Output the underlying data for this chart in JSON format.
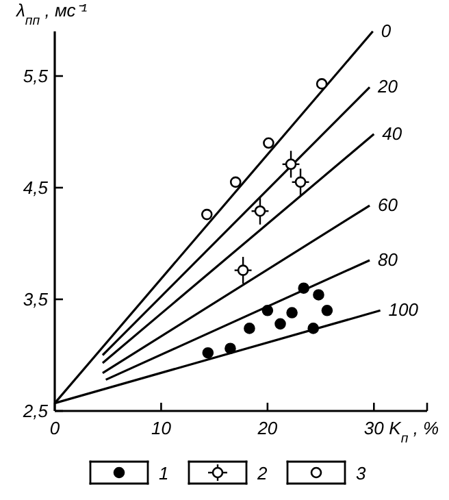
{
  "chart_data": {
    "type": "scatter",
    "xlabel": "K$_{п}$, %",
    "ylabel": "λ$_{пп}$, мс⁻¹",
    "xlim": [
      0,
      35
    ],
    "ylim": [
      2.5,
      5.9
    ],
    "xticks": [
      0,
      10,
      20,
      30,
      {
        "value": 35,
        "label": null
      }
    ],
    "yticks": [
      {
        "value": 2.5,
        "label": "2,5"
      },
      {
        "value": 3.5,
        "label": "3,5"
      },
      {
        "value": 4.5,
        "label": "4,5"
      },
      {
        "value": 5.5,
        "label": "5,5"
      }
    ],
    "grid": false,
    "legend": "bottom",
    "marker": "circle",
    "series": [
      {
        "type": "line",
        "name": "0",
        "color": "#000000",
        "x": [
          0,
          29.9
        ],
        "values": [
          2.57,
          5.9
        ],
        "marker": "none",
        "line_style": "solid"
      },
      {
        "type": "line",
        "name": "20",
        "color": "#000000",
        "x": [
          4.5,
          29.6
        ],
        "values": [
          3.0,
          5.4
        ],
        "marker": "none",
        "line_style": "solid"
      },
      {
        "type": "line",
        "name": "40",
        "color": "#000000",
        "x": [
          4.5,
          30
        ],
        "values": [
          2.93,
          4.98
        ],
        "marker": "none",
        "line_style": "solid"
      },
      {
        "type": "line",
        "name": "60",
        "color": "#000000",
        "x": [
          4.5,
          29.6
        ],
        "values": [
          2.84,
          4.34
        ],
        "marker": "none",
        "line_style": "solid"
      },
      {
        "type": "line",
        "name": "80",
        "color": "#000000",
        "x": [
          4.8,
          29.6
        ],
        "values": [
          2.78,
          3.85
        ],
        "marker": "none",
        "line_style": "solid"
      },
      {
        "type": "line",
        "name": "100",
        "color": "#000000",
        "x": [
          0,
          30.6
        ],
        "values": [
          2.57,
          3.4
        ],
        "marker": "none",
        "line_style": "solid"
      },
      {
        "name": "1",
        "color": "#000000",
        "x": [
          23.4,
          24.8,
          25.6,
          20,
          22.3,
          18.3,
          21.2,
          24.3,
          14.4,
          16.5
        ],
        "values": [
          3.6,
          3.54,
          3.4,
          3.4,
          3.38,
          3.24,
          3.28,
          3.24,
          3.02,
          3.06
        ]
      },
      {
        "name": "2",
        "color": "#ffffff",
        "x": [
          22.2,
          23.1,
          19.3,
          17.7
        ],
        "values": [
          4.71,
          4.55,
          4.29,
          3.76
        ],
        "errors": [
          0.12,
          0.12,
          0.12,
          0.12
        ],
        "xerrors": [
          0.8,
          0.8,
          0.8,
          0.8
        ]
      },
      {
        "name": "3",
        "color": "#ffffff",
        "x": [
          14.3,
          17,
          20.1,
          25.1
        ],
        "values": [
          4.26,
          4.55,
          4.9,
          5.43
        ]
      }
    ]
  }
}
